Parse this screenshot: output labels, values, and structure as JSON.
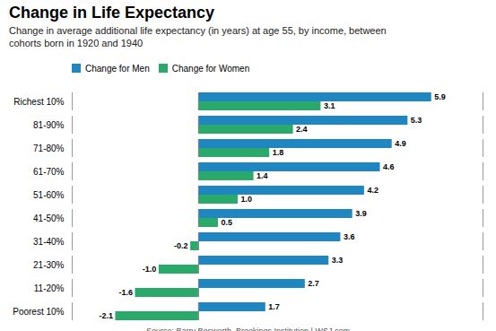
{
  "chart_data": {
    "type": "bar",
    "orientation": "horizontal",
    "title": "Change in Life Expectancy",
    "subtitle": "Change in average additional life expectancy (in years) at age 55, by income, between\ncohorts born in 1920 and 1940",
    "source": "Source: Barry Bosworth, Brookings Institution  |  WSJ.com",
    "categories": [
      "Richest 10%",
      "81-90%",
      "71-80%",
      "61-70%",
      "51-60%",
      "41-50%",
      "31-40%",
      "21-30%",
      "11-20%",
      "Poorest 10%"
    ],
    "series": [
      {
        "name": "Change for Men",
        "color": "#2086C2",
        "values": [
          5.9,
          5.3,
          4.9,
          4.6,
          4.2,
          3.9,
          3.6,
          3.3,
          2.7,
          1.7
        ]
      },
      {
        "name": "Change for Women",
        "color": "#2AAA6A",
        "values": [
          3.1,
          2.4,
          1.8,
          1.4,
          1.0,
          0.5,
          -0.2,
          -1.0,
          -1.6,
          -2.1
        ],
        "value_labels": [
          "3.1",
          "2.4",
          "1.8",
          "1.4",
          "1.0",
          "0.5",
          "-0.2",
          "-1.0",
          "-1.6",
          "-2.1"
        ]
      }
    ],
    "xlim": [
      -3.2,
      7.2
    ],
    "data_labels": true,
    "tick_labels": "y",
    "legend": "top",
    "grid": false
  }
}
